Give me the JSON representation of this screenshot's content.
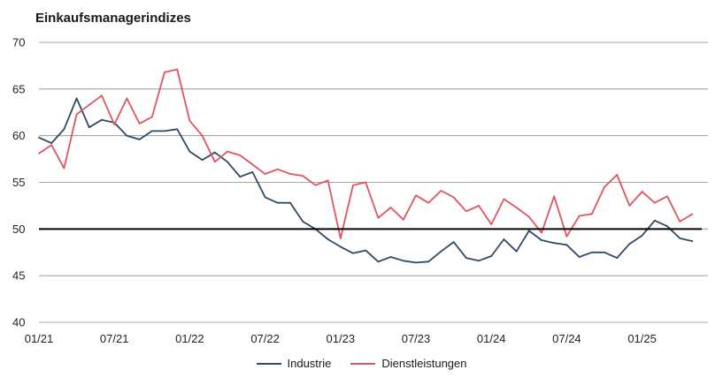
{
  "chart_data": {
    "type": "line",
    "title": "Einkaufsmanagerindizes",
    "xlabel": "",
    "ylabel": "",
    "ylim": [
      40,
      70
    ],
    "yticks": [
      "40",
      "45",
      "50",
      "55",
      "60",
      "65",
      "70"
    ],
    "xtick_labels": [
      "01/21",
      "07/21",
      "01/22",
      "07/22",
      "01/23",
      "07/23",
      "01/24",
      "07/24",
      "01/25"
    ],
    "reference_line": 50,
    "grid": true,
    "legend_position": "bottom",
    "x": [
      "01/21",
      "02/21",
      "03/21",
      "04/21",
      "05/21",
      "06/21",
      "07/21",
      "08/21",
      "09/21",
      "10/21",
      "11/21",
      "12/21",
      "01/22",
      "02/22",
      "03/22",
      "04/22",
      "05/22",
      "06/22",
      "07/22",
      "08/22",
      "09/22",
      "10/22",
      "11/22",
      "12/22",
      "01/23",
      "02/23",
      "03/23",
      "04/23",
      "05/23",
      "06/23",
      "07/23",
      "08/23",
      "09/23",
      "10/23",
      "11/23",
      "12/23",
      "01/24",
      "02/24",
      "03/24",
      "04/24",
      "05/24",
      "06/24",
      "07/24",
      "08/24",
      "09/24",
      "10/24",
      "11/24",
      "12/24",
      "01/25",
      "02/25",
      "03/25",
      "04/25",
      "05/25"
    ],
    "series": [
      {
        "name": "Industrie",
        "color": "#2e4a66",
        "values": [
          59.8,
          59.2,
          60.7,
          64.0,
          60.9,
          61.7,
          61.4,
          60.0,
          59.6,
          60.5,
          60.5,
          60.7,
          58.3,
          57.4,
          58.2,
          57.2,
          55.6,
          56.1,
          53.4,
          52.8,
          52.8,
          50.8,
          50.0,
          48.9,
          48.1,
          47.4,
          47.7,
          46.5,
          47.0,
          46.6,
          46.4,
          46.5,
          47.6,
          48.6,
          46.9,
          46.6,
          47.1,
          48.9,
          47.6,
          49.8,
          48.8,
          48.5,
          48.3,
          47.0,
          47.5,
          47.5,
          46.9,
          48.4,
          49.3,
          50.9,
          50.3,
          49.0,
          48.7
        ]
      },
      {
        "name": "Dienstleistungen",
        "color": "#e0555f",
        "values": [
          58.1,
          59.0,
          56.5,
          62.3,
          63.3,
          64.3,
          61.2,
          64.0,
          61.3,
          62.0,
          66.8,
          67.1,
          61.6,
          60.0,
          57.2,
          58.3,
          57.9,
          56.9,
          55.9,
          56.4,
          55.9,
          55.7,
          54.7,
          55.2,
          49.0,
          54.7,
          55.0,
          51.2,
          52.3,
          51.0,
          53.6,
          52.8,
          54.1,
          53.4,
          51.9,
          52.5,
          50.5,
          53.2,
          52.3,
          51.3,
          49.6,
          53.5,
          49.2,
          51.4,
          51.6,
          54.5,
          55.8,
          52.5,
          54.0,
          52.8,
          53.5,
          50.8,
          51.6
        ]
      }
    ]
  }
}
